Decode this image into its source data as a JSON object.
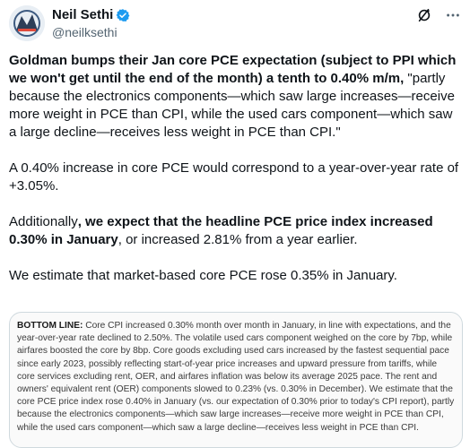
{
  "author": {
    "display_name": "Neil Sethi",
    "handle": "@neilksethi",
    "verified_icon": "verified-badge-icon",
    "verified_color": "#1d9bf0"
  },
  "header_icons": [
    "grok-icon",
    "more-options-icon"
  ],
  "tweet": {
    "p1_bold": "Goldman bumps their Jan core PCE expectation (subject to PPI which we won't get until the end of the month) a tenth to 0.40% m/m,",
    "p1_rest": " \"partly because the electronics components—which saw large increases—receive more weight in PCE than CPI, while the used cars component—which saw a large decline—receives less weight in PCE than CPI.\"",
    "p2": "A 0.40% increase in core PCE would correspond to a year-over-year rate of +3.05%.",
    "p3_pre": "Additionally",
    "p3_bold": ", we expect that the headline PCE price index increased 0.30% in January",
    "p3_post": ", or increased 2.81% from a year earlier.",
    "p4": "We estimate that market-based core PCE rose 0.35% in January."
  },
  "media": {
    "lead": "BOTTOM LINE:",
    "body": " Core CPI increased 0.30% month over month in January, in line with expectations, and the year-over-year rate declined to 2.50%. The volatile used cars component weighed on the core by 7bp, while airfares boosted the core by 8bp. Core goods excluding used cars increased by the fastest sequential pace since early 2023, possibly reflecting start-of-year price increases and upward pressure from tariffs, while core services excluding rent, OER, and airfares inflation was below its average 2025 pace. The rent and owners' equivalent rent (OER) components slowed to 0.23% (vs. 0.30% in December). We estimate that the core PCE price index rose 0.40% in January (vs. our expectation of 0.30% prior to today's CPI report), partly because the electronics components—which saw large increases—receive more weight in PCE than CPI, while the used cars component—which saw a large decline—receives less weight in PCE than CPI."
  }
}
